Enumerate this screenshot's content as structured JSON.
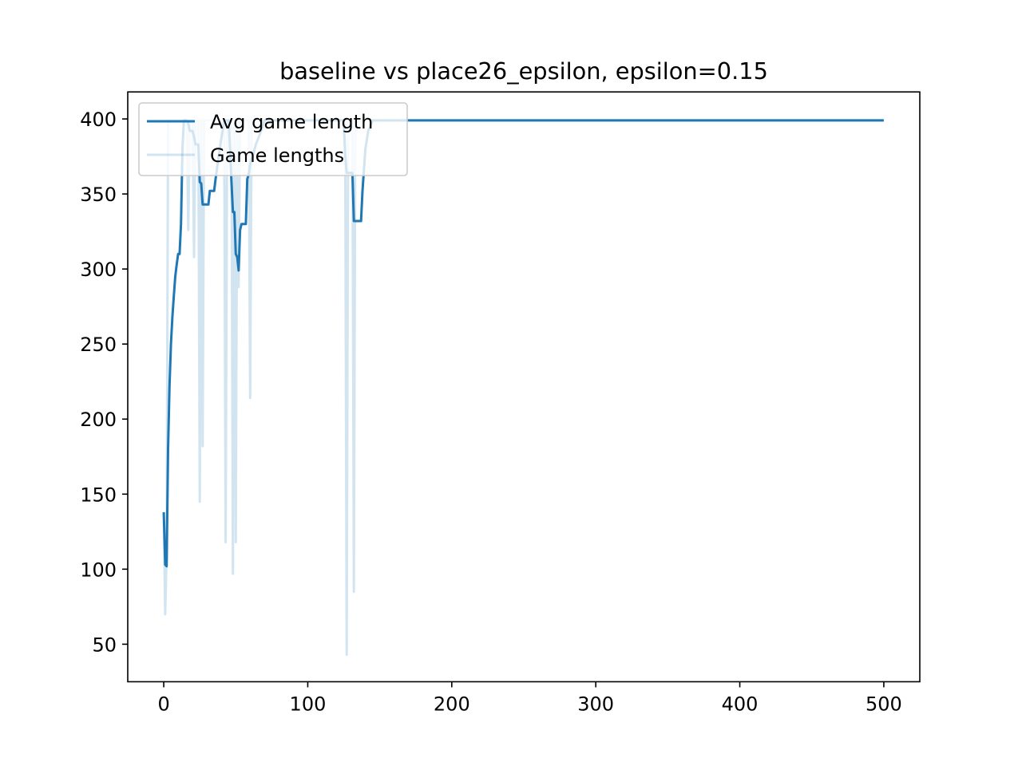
{
  "chart_data": {
    "type": "line",
    "title": "baseline vs place26_epsilon, epsilon=0.15",
    "xlabel": "",
    "ylabel": "",
    "xlim": [
      -25,
      525
    ],
    "ylim": [
      25,
      418
    ],
    "xticks": [
      0,
      100,
      200,
      300,
      400,
      500
    ],
    "yticks": [
      50,
      100,
      150,
      200,
      250,
      300,
      350,
      400
    ],
    "grid": false,
    "legend_position": "upper left",
    "series": [
      {
        "name": "Avg game length",
        "color": "#1f77b4",
        "alpha": 1.0,
        "x": [
          0,
          1,
          2,
          3,
          4,
          5,
          6,
          7,
          8,
          9,
          10,
          11,
          12,
          13,
          14,
          15,
          16,
          17,
          18,
          19,
          20,
          21,
          22,
          23,
          24,
          25,
          26,
          27,
          28,
          29,
          30,
          31,
          32,
          33,
          34,
          35,
          36,
          38,
          40,
          42,
          43,
          44,
          45,
          46,
          47,
          48,
          49,
          50,
          51,
          52,
          53,
          54,
          55,
          56,
          57,
          58,
          59,
          60,
          62,
          64,
          66,
          68,
          70,
          75,
          80,
          90,
          100,
          110,
          120,
          124,
          125,
          126,
          127,
          128,
          129,
          130,
          131,
          132,
          133,
          134,
          135,
          136,
          137,
          138,
          139,
          140,
          142,
          145,
          150,
          160,
          200,
          250,
          300,
          350,
          400,
          450,
          500
        ],
        "y": [
          138,
          103,
          102,
          180,
          222,
          250,
          268,
          282,
          295,
          303,
          310,
          310,
          330,
          380,
          399,
          399,
          399,
          397,
          392,
          392,
          392,
          388,
          383,
          383,
          383,
          358,
          357,
          343,
          343,
          343,
          343,
          343,
          352,
          352,
          352,
          352,
          360,
          374,
          387,
          399,
          399,
          399,
          399,
          380,
          358,
          338,
          338,
          310,
          308,
          299,
          326,
          330,
          330,
          330,
          330,
          360,
          363,
          370,
          376,
          383,
          388,
          393,
          399,
          399,
          399,
          399,
          399,
          399,
          399,
          399,
          399,
          376,
          364,
          364,
          364,
          364,
          364,
          332,
          332,
          332,
          332,
          332,
          332,
          352,
          366,
          380,
          392,
          399,
          399,
          399,
          399,
          399,
          399,
          399,
          399,
          399,
          399
        ]
      },
      {
        "name": "Game lengths",
        "color": "#1f77b4",
        "alpha": 0.2,
        "x": [
          0,
          1,
          2,
          3,
          4,
          5,
          6,
          7,
          8,
          9,
          10,
          11,
          12,
          13,
          14,
          15,
          16,
          17,
          18,
          19,
          20,
          21,
          22,
          23,
          24,
          25,
          26,
          27,
          28,
          29,
          30,
          31,
          32,
          33,
          34,
          35,
          36,
          37,
          38,
          39,
          40,
          41,
          42,
          43,
          44,
          45,
          46,
          47,
          48,
          49,
          50,
          51,
          52,
          53,
          54,
          55,
          56,
          57,
          58,
          59,
          60,
          61,
          62,
          63,
          64,
          65,
          66,
          67,
          68,
          69,
          70,
          80,
          100,
          120,
          124,
          125,
          126,
          127,
          128,
          129,
          130,
          131,
          132,
          133,
          134,
          135,
          136,
          137,
          138,
          139,
          140,
          141,
          142,
          150,
          200,
          300,
          400,
          500
        ],
        "y": [
          138,
          70,
          110,
          399,
          399,
          399,
          399,
          399,
          399,
          399,
          399,
          399,
          399,
          399,
          399,
          399,
          399,
          326,
          399,
          399,
          399,
          308,
          399,
          399,
          399,
          145,
          399,
          182,
          399,
          399,
          399,
          399,
          399,
          399,
          399,
          399,
          399,
          399,
          399,
          399,
          399,
          399,
          399,
          118,
          399,
          399,
          399,
          399,
          97,
          399,
          118,
          399,
          288,
          399,
          399,
          399,
          399,
          399,
          399,
          399,
          214,
          399,
          399,
          399,
          399,
          399,
          399,
          399,
          399,
          399,
          399,
          399,
          399,
          399,
          399,
          399,
          399,
          43,
          399,
          399,
          399,
          399,
          85,
          399,
          399,
          399,
          399,
          399,
          399,
          399,
          399,
          399,
          399,
          399,
          399,
          399,
          399,
          399
        ]
      }
    ]
  }
}
